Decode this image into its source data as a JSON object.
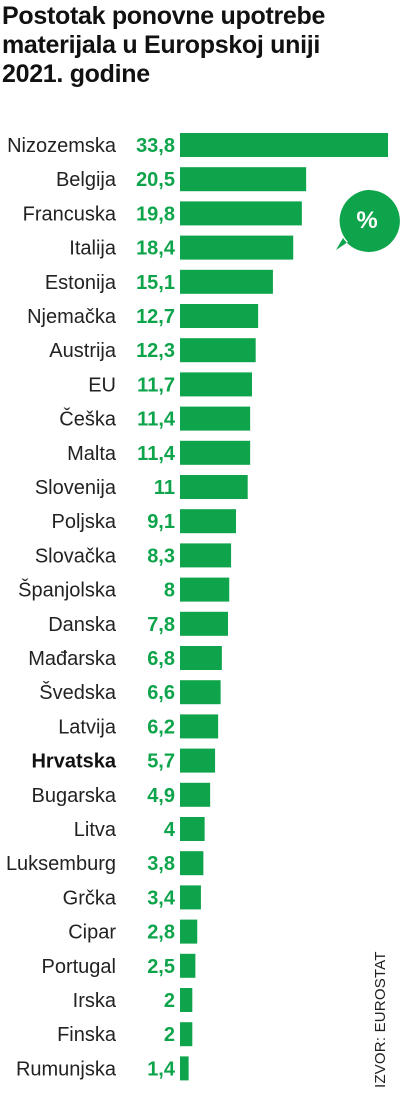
{
  "title_lines": [
    "Postotak ponovne upotrebe",
    "materijala u Europskoj uniji",
    "2021. godine"
  ],
  "badge": "%",
  "source": "IZVOR: EUROSTAT",
  "colors": {
    "bar": "#0ea44b",
    "value_text": "#0ea44b",
    "badge": "#0ea44b"
  },
  "chart_data": {
    "type": "bar",
    "orientation": "horizontal",
    "title": "Postotak ponovne upotrebe materijala u Europskoj uniji 2021. godine",
    "categories": [
      "Nizozemska",
      "Belgija",
      "Francuska",
      "Italija",
      "Estonija",
      "Njemačka",
      "Austrija",
      "EU",
      "Češka",
      "Malta",
      "Slovenija",
      "Poljska",
      "Slovačka",
      "Španjolska",
      "Danska",
      "Mađarska",
      "Švedska",
      "Latvija",
      "Hrvatska",
      "Bugarska",
      "Litva",
      "Luksemburg",
      "Grčka",
      "Cipar",
      "Portugal",
      "Irska",
      "Finska",
      "Rumunjska"
    ],
    "values": [
      33.8,
      20.5,
      19.8,
      18.4,
      15.1,
      12.7,
      12.3,
      11.7,
      11.4,
      11.4,
      11,
      9.1,
      8.3,
      8,
      7.8,
      6.8,
      6.6,
      6.2,
      5.7,
      4.9,
      4,
      3.8,
      3.4,
      2.8,
      2.5,
      2,
      2,
      1.4
    ],
    "value_labels": [
      "33,8",
      "20,5",
      "19,8",
      "18,4",
      "15,1",
      "12,7",
      "12,3",
      "11,7",
      "11,4",
      "11,4",
      "11",
      "9,1",
      "8,3",
      "8",
      "7,8",
      "6,8",
      "6,6",
      "6,2",
      "5,7",
      "4,9",
      "4",
      "3,8",
      "3,4",
      "2,8",
      "2,5",
      "2",
      "2",
      "1,4"
    ],
    "highlight": "Hrvatska",
    "xlim": [
      0,
      33.8
    ]
  }
}
